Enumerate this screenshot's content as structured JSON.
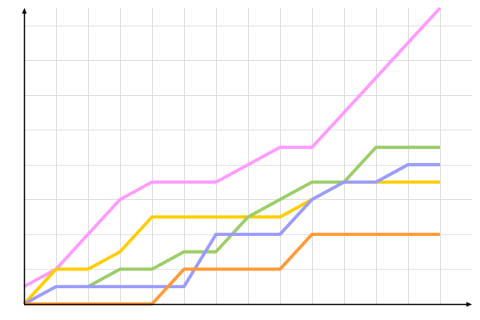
{
  "chart_data": {
    "type": "line",
    "title": "",
    "xlabel": "",
    "ylabel": "",
    "x": [
      0,
      1,
      2,
      3,
      4,
      5,
      6,
      7,
      8,
      9,
      10,
      11,
      12,
      13
    ],
    "xlim": [
      0,
      14
    ],
    "ylim": [
      0,
      17
    ],
    "grid": true,
    "series": [
      {
        "color": "#ff99ff",
        "values": [
          1,
          2,
          4,
          6,
          7,
          7,
          7,
          8,
          9,
          9,
          11,
          13,
          15,
          17
        ]
      },
      {
        "color": "#ffcc00",
        "values": [
          0,
          2,
          2,
          3,
          5,
          5,
          5,
          5,
          5,
          6,
          7,
          7,
          7,
          7
        ]
      },
      {
        "color": "#99cc66",
        "values": [
          null,
          null,
          1,
          2,
          2,
          3,
          3,
          5,
          6,
          7,
          7,
          9,
          9,
          9
        ]
      },
      {
        "color": "#9999ff",
        "values": [
          0,
          1,
          1,
          1,
          1,
          1,
          4,
          4,
          4,
          6,
          7,
          7,
          8,
          8
        ]
      },
      {
        "color": "#ff9933",
        "values": [
          0,
          0,
          0,
          0,
          0,
          2,
          2,
          2,
          2,
          4,
          4,
          4,
          4,
          4
        ]
      }
    ]
  }
}
